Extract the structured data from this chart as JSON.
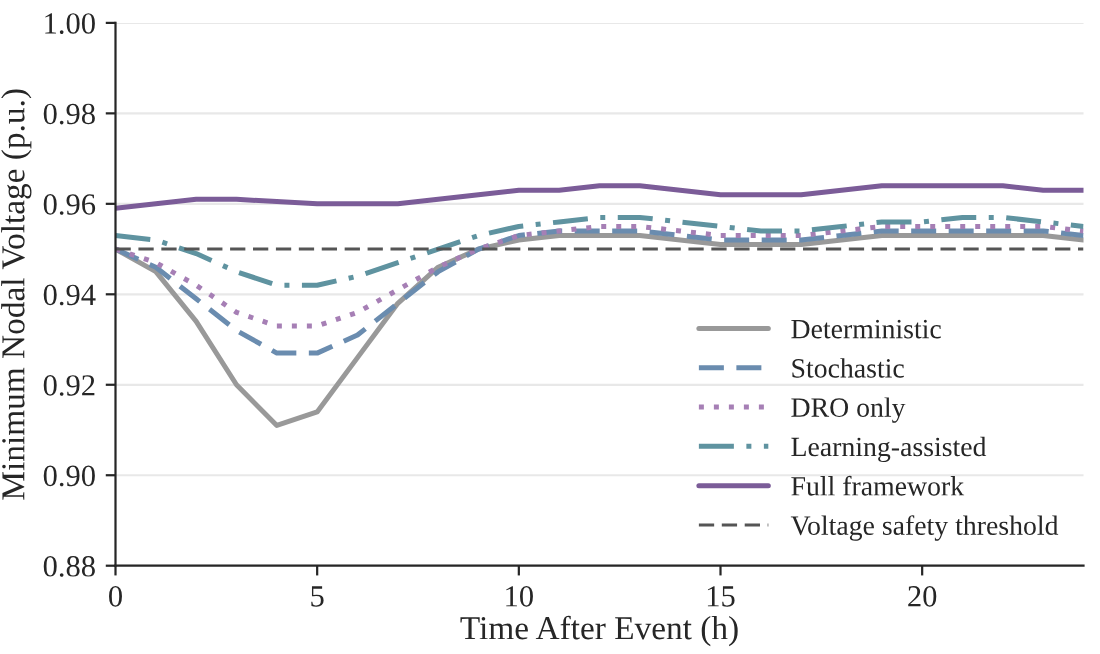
{
  "chart_data": {
    "type": "line",
    "xlabel": "Time After Event (h)",
    "ylabel": "Minimum Nodal Voltage (p.u.)",
    "x": [
      0,
      1,
      2,
      3,
      4,
      5,
      6,
      7,
      8,
      9,
      10,
      11,
      12,
      13,
      14,
      15,
      16,
      17,
      18,
      19,
      20,
      21,
      22,
      23,
      24
    ],
    "series": [
      {
        "name": "Deterministic",
        "color": "#999999",
        "line_style": "solid",
        "values": [
          0.95,
          0.945,
          0.934,
          0.92,
          0.911,
          0.914,
          0.926,
          0.938,
          0.946,
          0.95,
          0.952,
          0.953,
          0.953,
          0.953,
          0.952,
          0.951,
          0.951,
          0.951,
          0.952,
          0.953,
          0.953,
          0.953,
          0.953,
          0.953,
          0.952
        ]
      },
      {
        "name": "Stochastic",
        "color": "#6a8caf",
        "line_style": "dashed",
        "values": [
          0.95,
          0.946,
          0.939,
          0.932,
          0.927,
          0.927,
          0.931,
          0.938,
          0.945,
          0.95,
          0.953,
          0.954,
          0.954,
          0.954,
          0.953,
          0.952,
          0.952,
          0.952,
          0.953,
          0.954,
          0.954,
          0.954,
          0.954,
          0.954,
          0.953
        ]
      },
      {
        "name": "DRO only",
        "color": "#a67fb5",
        "line_style": "dotted",
        "values": [
          0.95,
          0.947,
          0.942,
          0.936,
          0.933,
          0.933,
          0.936,
          0.941,
          0.946,
          0.95,
          0.953,
          0.954,
          0.955,
          0.955,
          0.954,
          0.953,
          0.953,
          0.953,
          0.954,
          0.955,
          0.955,
          0.955,
          0.955,
          0.955,
          0.954
        ]
      },
      {
        "name": "Learning-assisted",
        "color": "#5f93a0",
        "line_style": "dashdot",
        "values": [
          0.953,
          0.952,
          0.949,
          0.945,
          0.942,
          0.942,
          0.944,
          0.947,
          0.95,
          0.953,
          0.955,
          0.956,
          0.957,
          0.957,
          0.956,
          0.955,
          0.954,
          0.954,
          0.955,
          0.956,
          0.956,
          0.957,
          0.957,
          0.956,
          0.955
        ]
      },
      {
        "name": "Full framework",
        "color": "#7b5c98",
        "line_style": "solid",
        "values": [
          0.959,
          0.96,
          0.961,
          0.961,
          0.9605,
          0.96,
          0.96,
          0.96,
          0.961,
          0.962,
          0.963,
          0.963,
          0.964,
          0.964,
          0.963,
          0.962,
          0.962,
          0.962,
          0.963,
          0.964,
          0.964,
          0.964,
          0.964,
          0.963,
          0.963
        ]
      }
    ],
    "ref_lines": [
      {
        "axis": "y",
        "value": 0.95,
        "label": "Voltage safety threshold",
        "color": "#555555",
        "line_style": "dashed"
      }
    ],
    "xlim": [
      0,
      24
    ],
    "xticks": [
      0,
      5,
      10,
      15,
      20
    ],
    "ylim": [
      0.88,
      1.0
    ],
    "yticks": [
      0.88,
      {
        "value": 0.9,
        "label": "0.90"
      },
      0.92,
      0.94,
      0.96,
      0.98,
      {
        "value": 1.0,
        "label": "1.00"
      }
    ],
    "grid": "y",
    "legend": "bottom right",
    "marker": "none"
  }
}
